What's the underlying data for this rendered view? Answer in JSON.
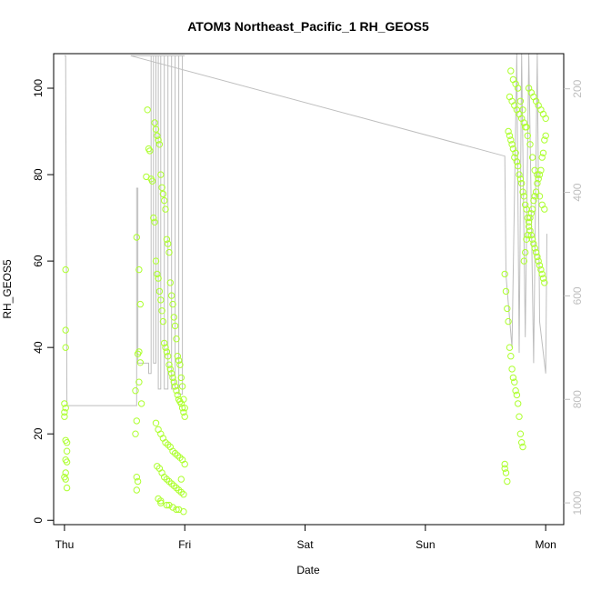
{
  "chart_data": {
    "type": "scatter",
    "title": "ATOM3 Northeast_Pacific_1 RH_GEOS5",
    "xlabel": "Date",
    "ylabel": "RH_GEOS5",
    "x_tick_labels": [
      "Thu",
      "Fri",
      "Sat",
      "Sun",
      "Mon"
    ],
    "x_tick_days": [
      0,
      1,
      2,
      3,
      4
    ],
    "xlim": [
      -0.09,
      4.15
    ],
    "y_ticks": [
      0,
      20,
      40,
      60,
      80,
      100
    ],
    "ylim": [
      -1,
      108
    ],
    "y2_ticks": [
      200,
      400,
      600,
      800,
      1000
    ],
    "y2_lim": [
      1042,
      132
    ],
    "y2_reversed": true,
    "grid": false,
    "colors": {
      "points": "#adff2f",
      "pressure_line": "#bebebe",
      "axes": "#000000",
      "right_axis": "#bebebe"
    },
    "series": [
      {
        "marker": "open-circle",
        "color": "#adff2f",
        "x": [
          0.01,
          0.01,
          0.01,
          0.0,
          0.01,
          0.0,
          0.0,
          0.01,
          0.02,
          0.02,
          0.01,
          0.02,
          0.01,
          0.0,
          0.01,
          0.02,
          0.6,
          0.62,
          0.63,
          0.62,
          0.61,
          0.64,
          0.6,
          0.59,
          0.6,
          0.61,
          0.6,
          0.63,
          0.62,
          0.59,
          0.69,
          0.7,
          0.71,
          0.68,
          0.72,
          0.73,
          0.74,
          0.75,
          0.76,
          0.77,
          0.78,
          0.79,
          0.8,
          0.81,
          0.82,
          0.83,
          0.84,
          0.85,
          0.86,
          0.87,
          0.88,
          0.89,
          0.9,
          0.91,
          0.92,
          0.93,
          0.94,
          0.95,
          0.96,
          0.97,
          0.98,
          0.99,
          1.0,
          0.75,
          0.76,
          0.77,
          0.78,
          0.79,
          0.8,
          0.81,
          0.82,
          0.83,
          0.84,
          0.85,
          0.86,
          0.87,
          0.88,
          0.89,
          0.9,
          0.91,
          0.92,
          0.93,
          0.94,
          0.95,
          0.96,
          0.97,
          0.98,
          0.99,
          1.0,
          0.76,
          0.78,
          0.8,
          0.82,
          0.84,
          0.86,
          0.88,
          0.9,
          0.92,
          0.94,
          0.96,
          0.98,
          1.0,
          0.77,
          0.79,
          0.81,
          0.83,
          0.85,
          0.87,
          0.89,
          0.91,
          0.93,
          0.95,
          0.97,
          0.99,
          0.78,
          0.8,
          0.85,
          0.9,
          0.95,
          0.99,
          0.8,
          0.87,
          0.93,
          0.97,
          3.66,
          3.66,
          3.67,
          3.68,
          3.66,
          3.67,
          3.68,
          3.69,
          3.7,
          3.71,
          3.72,
          3.73,
          3.74,
          3.75,
          3.76,
          3.77,
          3.78,
          3.79,
          3.8,
          3.81,
          3.82,
          3.83,
          3.84,
          3.85,
          3.86,
          3.87,
          3.88,
          3.89,
          3.9,
          3.91,
          3.92,
          3.93,
          3.94,
          3.95,
          3.96,
          3.97,
          3.98,
          3.99,
          4.0,
          3.69,
          3.7,
          3.71,
          3.72,
          3.73,
          3.74,
          3.75,
          3.76,
          3.77,
          3.78,
          3.79,
          3.8,
          3.81,
          3.82,
          3.83,
          3.84,
          3.85,
          3.86,
          3.87,
          3.88,
          3.89,
          3.9,
          3.91,
          3.92,
          3.93,
          3.94,
          3.95,
          3.96,
          3.97,
          3.98,
          3.99,
          3.7,
          3.72,
          3.74,
          3.76,
          3.78,
          3.8,
          3.82,
          3.84,
          3.86,
          3.88,
          3.9,
          3.92,
          3.94,
          3.96,
          3.98,
          4.0,
          3.71,
          3.73,
          3.75,
          3.77,
          3.79,
          3.81,
          3.83,
          3.85,
          3.87,
          3.89,
          3.91,
          3.93,
          3.95,
          3.97,
          3.99
        ],
        "y": [
          58,
          44,
          40,
          27,
          26,
          25,
          24,
          18.5,
          18,
          16,
          14,
          13.5,
          11,
          10,
          9.5,
          7.5,
          65.5,
          58,
          50,
          39,
          38.5,
          27,
          23,
          20,
          10,
          9,
          7,
          36.5,
          32,
          30,
          95,
          86,
          85.5,
          79.5,
          79,
          78.5,
          70,
          69,
          60,
          57,
          56,
          53,
          51,
          48.5,
          46,
          41,
          40,
          39,
          38,
          36,
          35,
          34,
          33,
          32,
          31,
          30,
          29,
          28,
          27.5,
          27,
          26,
          25,
          24,
          92,
          90.5,
          89,
          88,
          87,
          80,
          77,
          75.5,
          74,
          72,
          65,
          64,
          62,
          55,
          52,
          50,
          47,
          45,
          42,
          38,
          37,
          36,
          33,
          31,
          28,
          26,
          22.5,
          21,
          20,
          19,
          18,
          17.5,
          17,
          16,
          15.5,
          15,
          14.5,
          14,
          13,
          12.5,
          12,
          11,
          10,
          9.5,
          9,
          8.5,
          8,
          7.5,
          7,
          6.5,
          6,
          5,
          4,
          3.5,
          3,
          2.5,
          2,
          4.5,
          3.5,
          2.5,
          9.5,
          13,
          12,
          11,
          9,
          57,
          53,
          49,
          46,
          40,
          38,
          35,
          33,
          32,
          30,
          29,
          27,
          24,
          20,
          18,
          17,
          60,
          62,
          65,
          66,
          68,
          70,
          71,
          72,
          74,
          75,
          76,
          78,
          79,
          80,
          81,
          84,
          85,
          88,
          89,
          90,
          89,
          88,
          87,
          86,
          84,
          85,
          83,
          82,
          80,
          79,
          78,
          76,
          75,
          73,
          72,
          70,
          69,
          67,
          66,
          65,
          64,
          63,
          62,
          61,
          60,
          59,
          58,
          57,
          56,
          55,
          98,
          97,
          96,
          95,
          94,
          93,
          92,
          91,
          100,
          99,
          98,
          97,
          96,
          95,
          94,
          93,
          104,
          102,
          101,
          100,
          97,
          95,
          91,
          89,
          87,
          84,
          81,
          80,
          75,
          73,
          72
        ]
      },
      {
        "name": "pressure",
        "axis": "right",
        "color": "#bebebe",
        "line": true,
        "x": [
          0.0,
          0.01,
          0.01,
          0.02,
          0.02,
          0.6,
          0.6,
          0.61,
          0.61,
          0.62,
          0.62,
          0.7,
          0.7,
          0.72,
          0.72,
          0.74,
          0.74,
          0.76,
          0.76,
          0.78,
          0.78,
          0.8,
          0.8,
          0.83,
          0.83,
          0.86,
          0.86,
          0.89,
          0.89,
          0.92,
          0.92,
          0.95,
          0.95,
          0.98,
          0.98,
          1.0,
          0.55,
          3.66,
          3.66,
          3.67,
          3.67,
          3.72,
          3.72,
          3.76,
          3.76,
          3.78,
          3.78,
          3.8,
          3.8,
          3.83,
          3.83,
          3.86,
          3.86,
          3.9,
          3.9,
          3.93,
          3.93,
          3.95,
          3.95,
          4.0,
          4.0,
          4.01,
          4.01
        ],
        "y": [
          136,
          136,
          136,
          812,
          812,
          812,
          392,
          392,
          730,
          730,
          730,
          730,
          750,
          750,
          136,
          136,
          730,
          730,
          136,
          136,
          780,
          780,
          136,
          136,
          780,
          780,
          136,
          136,
          780,
          780,
          136,
          136,
          790,
          790,
          136,
          136,
          136,
          330,
          330,
          560,
          560,
          700,
          700,
          130,
          130,
          710,
          710,
          130,
          130,
          680,
          680,
          130,
          130,
          730,
          730,
          130,
          130,
          650,
          650,
          750,
          750,
          480,
          480
        ]
      }
    ]
  }
}
